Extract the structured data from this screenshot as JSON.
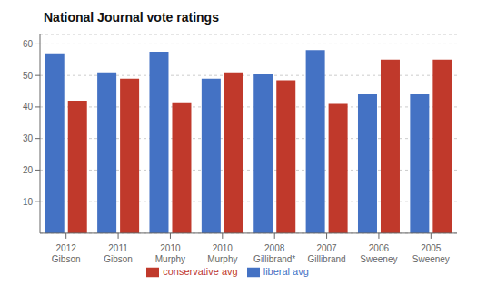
{
  "chart_data": {
    "type": "bar",
    "title": "National Journal vote ratings",
    "categories": [
      "2012\nGibson",
      "2011\nGibson",
      "2010\nMurphy",
      "2010\nMurphy",
      "2008\nGillibrand*",
      "2007\nGillibrand",
      "2006\nSweeney",
      "2005\nSweeney"
    ],
    "series": [
      {
        "name": "liberal avg",
        "color": "#4472c4",
        "values": [
          57,
          51,
          57.5,
          49,
          50.5,
          58,
          44,
          44
        ]
      },
      {
        "name": "conservative avg",
        "color": "#c0392b",
        "values": [
          42,
          49,
          41.5,
          51,
          48.5,
          41,
          55,
          55
        ]
      }
    ],
    "ylim": [
      0,
      63
    ],
    "yticks": [
      10,
      20,
      30,
      40,
      50,
      60
    ],
    "grid": true,
    "legend": "bottom"
  }
}
